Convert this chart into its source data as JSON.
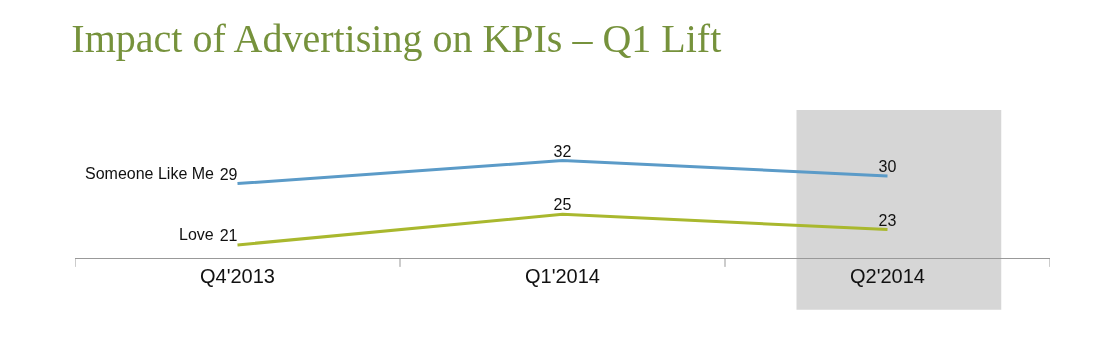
{
  "chart_data": {
    "type": "line",
    "title": "Impact of Advertising on KPIs – Q1 Lift",
    "categories": [
      "Q4'2013",
      "Q1'2014",
      "Q2'2014"
    ],
    "series": [
      {
        "name": "Someone Like Me",
        "color": "#5b9bc8",
        "values": [
          29,
          32,
          30
        ]
      },
      {
        "name": "Love",
        "color": "#a9b82e",
        "values": [
          21,
          25,
          23
        ]
      }
    ],
    "data_labels": true,
    "legend": false,
    "grid": false,
    "marker": "none",
    "line_style": "solid",
    "bands": [
      {
        "axis": "x",
        "from": "Q2'2014",
        "to": "Q2'2014",
        "color": "#c8c8c8"
      }
    ]
  }
}
